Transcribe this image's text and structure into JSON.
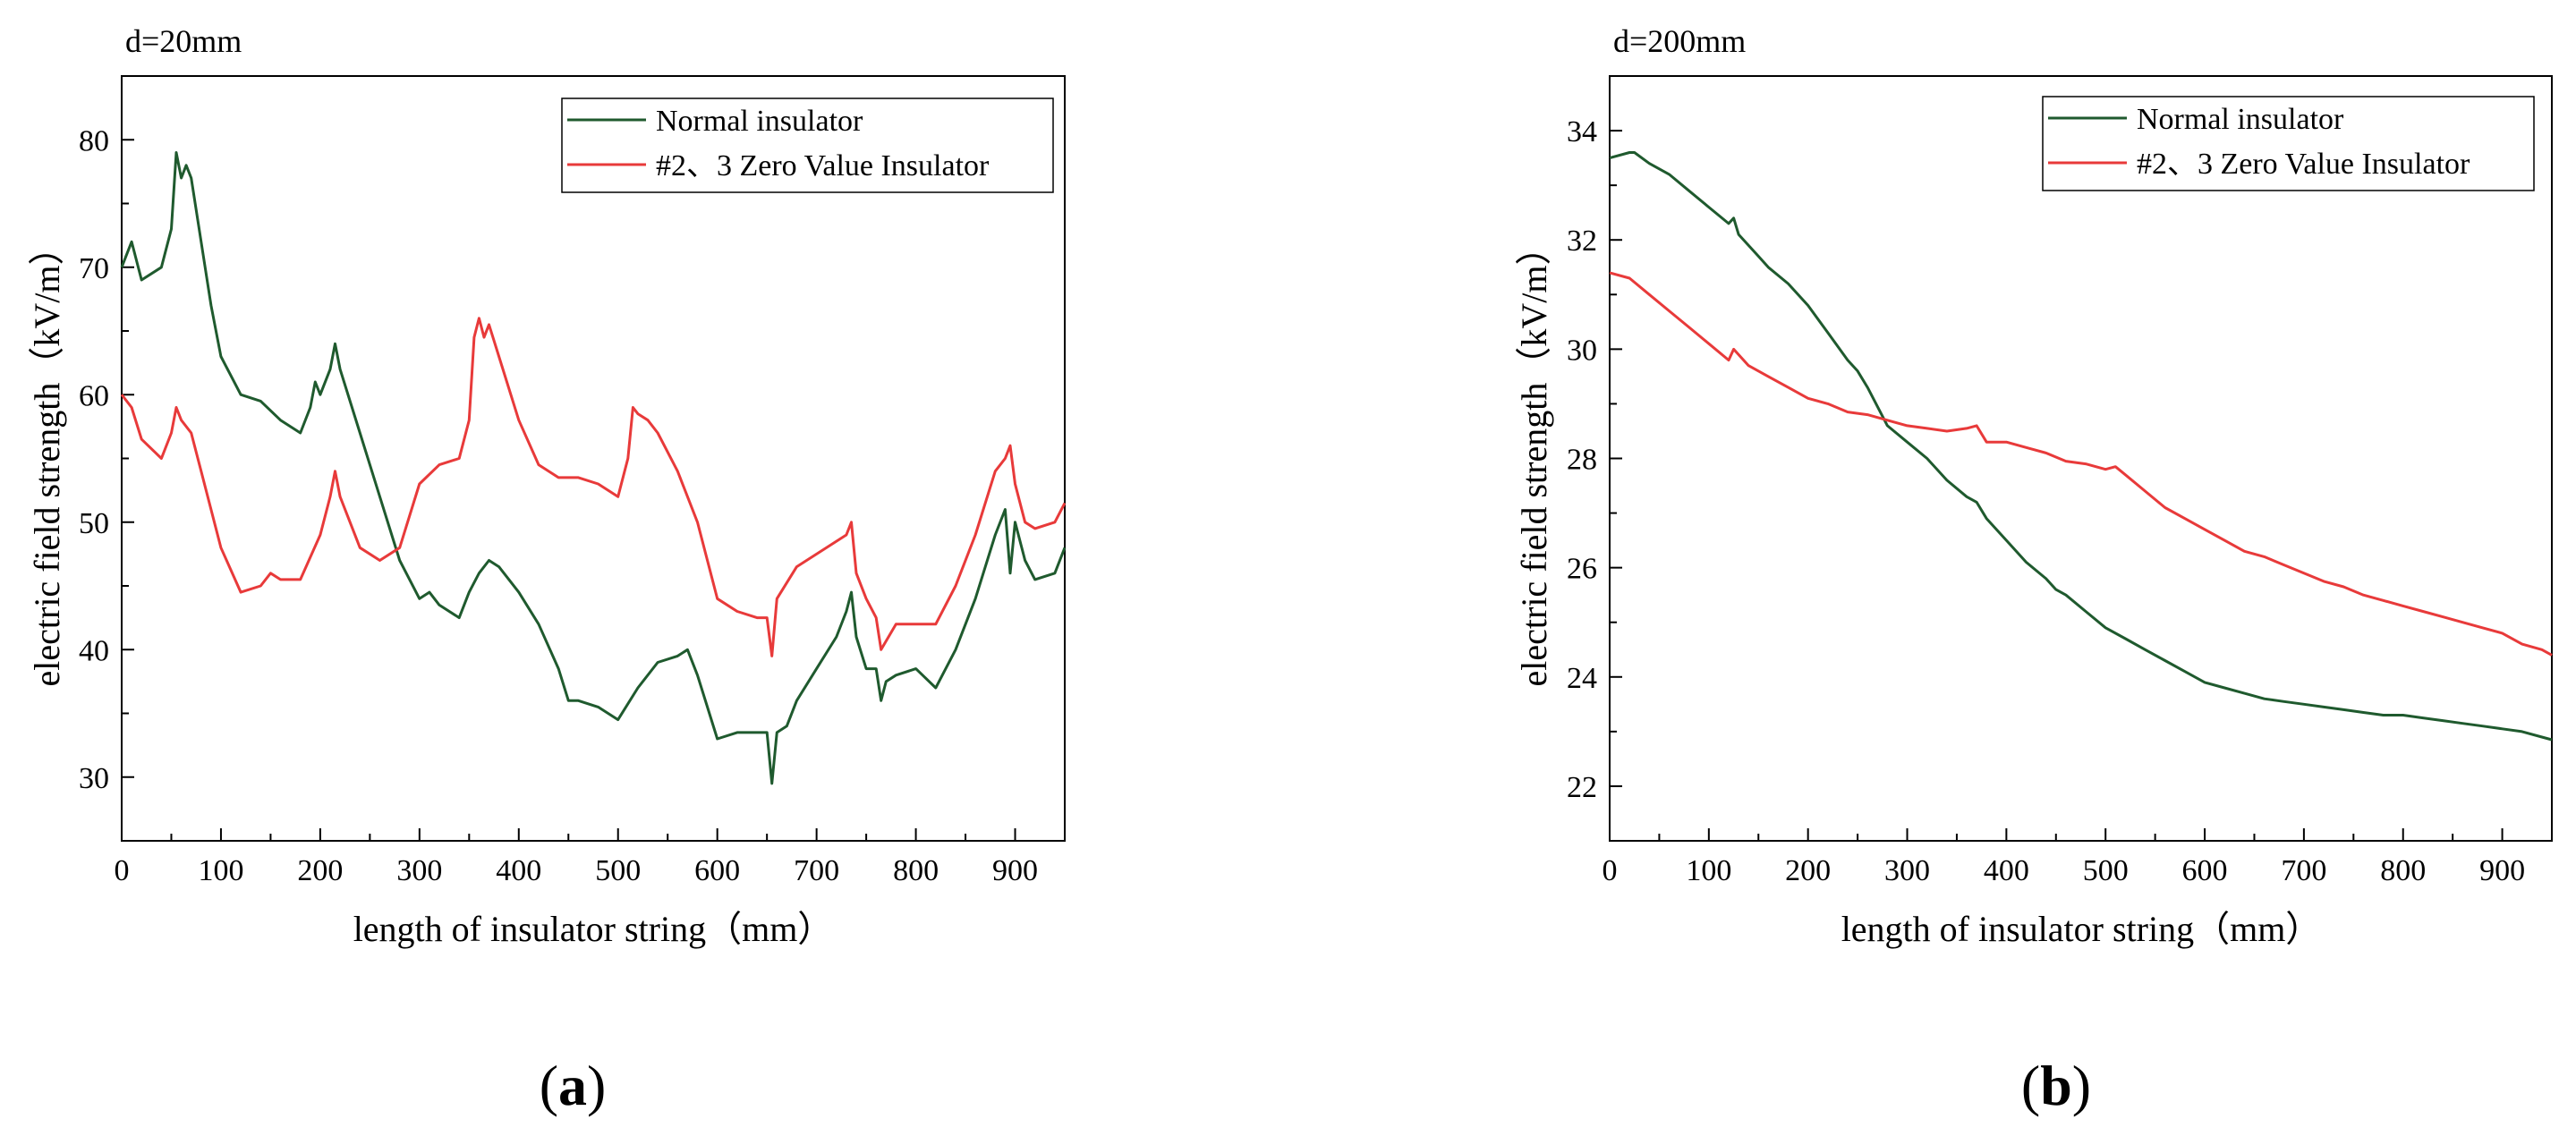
{
  "chart_data": [
    {
      "type": "line",
      "panel_label": "(a)",
      "panel_letter": "a",
      "corner_label": "d=20mm",
      "xlabel": "length of insulator string（mm）",
      "ylabel": "electric field strength（kV/m）",
      "xlim": [
        0,
        950
      ],
      "ylim": [
        25,
        85
      ],
      "xticks": [
        0,
        100,
        200,
        300,
        400,
        500,
        600,
        700,
        800,
        900
      ],
      "yticks": [
        30,
        40,
        50,
        60,
        70,
        80
      ],
      "legend_position": "top-right",
      "series": [
        {
          "name": "Normal insulator",
          "color": "#1f5a2e",
          "x": [
            0,
            10,
            20,
            40,
            50,
            55,
            60,
            65,
            70,
            80,
            90,
            100,
            120,
            140,
            160,
            180,
            190,
            195,
            200,
            210,
            215,
            220,
            240,
            260,
            280,
            300,
            310,
            320,
            340,
            350,
            360,
            370,
            380,
            400,
            420,
            440,
            450,
            460,
            480,
            500,
            520,
            540,
            560,
            570,
            580,
            600,
            620,
            640,
            650,
            655,
            660,
            670,
            680,
            700,
            720,
            730,
            735,
            740,
            750,
            760,
            765,
            770,
            780,
            800,
            820,
            840,
            860,
            880,
            890,
            895,
            900,
            910,
            920,
            940,
            950
          ],
          "values": [
            70,
            72,
            69,
            70,
            73,
            79,
            77,
            78,
            77,
            72,
            67,
            63,
            60,
            59.5,
            58,
            57,
            59,
            61,
            60,
            62,
            64,
            62,
            57,
            52,
            47,
            44,
            44.5,
            43.5,
            42.5,
            44.5,
            46,
            47,
            46.5,
            44.5,
            42,
            38.5,
            36,
            36,
            35.5,
            34.5,
            37,
            39,
            39.5,
            40,
            38,
            33,
            33.5,
            33.5,
            33.5,
            29.5,
            33.5,
            34,
            36,
            38.5,
            41,
            43,
            44.5,
            41,
            38.5,
            38.5,
            36,
            37.5,
            38,
            38.5,
            37,
            40,
            44,
            49,
            51,
            46,
            50,
            47,
            45.5,
            46,
            48
          ]
        },
        {
          "name": "#2、3 Zero Value Insulator",
          "color": "#e83a3a",
          "x": [
            0,
            10,
            20,
            40,
            50,
            55,
            60,
            70,
            80,
            100,
            120,
            140,
            150,
            160,
            180,
            200,
            210,
            215,
            220,
            240,
            260,
            280,
            300,
            320,
            340,
            350,
            355,
            360,
            365,
            370,
            380,
            400,
            420,
            440,
            460,
            480,
            500,
            510,
            515,
            520,
            530,
            540,
            560,
            580,
            590,
            600,
            620,
            640,
            650,
            655,
            660,
            680,
            700,
            720,
            730,
            735,
            740,
            750,
            760,
            765,
            780,
            800,
            820,
            840,
            860,
            880,
            890,
            895,
            900,
            910,
            920,
            940,
            950
          ],
          "values": [
            60,
            59,
            56.5,
            55,
            57,
            59,
            58,
            57,
            54,
            48,
            44.5,
            45,
            46,
            45.5,
            45.5,
            49,
            52,
            54,
            52,
            48,
            47,
            48,
            53,
            54.5,
            55,
            58,
            64.5,
            66,
            64.5,
            65.5,
            63,
            58,
            54.5,
            53.5,
            53.5,
            53,
            52,
            55,
            59,
            58.5,
            58,
            57,
            54,
            50,
            47,
            44,
            43,
            42.5,
            42.5,
            39.5,
            44,
            46.5,
            47.5,
            48.5,
            49,
            50,
            46,
            44,
            42.5,
            40,
            42,
            42,
            42,
            45,
            49,
            54,
            55,
            56,
            53,
            50,
            49.5,
            50,
            51.5
          ]
        }
      ]
    },
    {
      "type": "line",
      "panel_label": "(b)",
      "panel_letter": "b",
      "corner_label": "d=200mm",
      "xlabel": "length of insulator string（mm）",
      "ylabel": "electric field strength（kV/m）",
      "xlim": [
        0,
        950
      ],
      "ylim": [
        21,
        35
      ],
      "xticks": [
        0,
        100,
        200,
        300,
        400,
        500,
        600,
        700,
        800,
        900
      ],
      "yticks": [
        22,
        24,
        26,
        28,
        30,
        32,
        34
      ],
      "legend_position": "top-right",
      "series": [
        {
          "name": "Normal insulator",
          "color": "#1f5a2e",
          "x": [
            0,
            20,
            25,
            40,
            60,
            80,
            100,
            120,
            125,
            130,
            150,
            160,
            180,
            200,
            220,
            240,
            250,
            260,
            280,
            300,
            320,
            340,
            360,
            370,
            380,
            400,
            420,
            440,
            450,
            460,
            480,
            500,
            520,
            540,
            560,
            580,
            600,
            620,
            640,
            660,
            680,
            700,
            720,
            740,
            760,
            780,
            800,
            820,
            840,
            860,
            880,
            900,
            920,
            940,
            950
          ],
          "values": [
            33.5,
            33.6,
            33.6,
            33.4,
            33.2,
            32.9,
            32.6,
            32.3,
            32.4,
            32.1,
            31.7,
            31.5,
            31.2,
            30.8,
            30.3,
            29.8,
            29.6,
            29.3,
            28.6,
            28.3,
            28,
            27.6,
            27.3,
            27.2,
            26.9,
            26.5,
            26.1,
            25.8,
            25.6,
            25.5,
            25.2,
            24.9,
            24.7,
            24.5,
            24.3,
            24.1,
            23.9,
            23.8,
            23.7,
            23.6,
            23.55,
            23.5,
            23.45,
            23.4,
            23.35,
            23.3,
            23.3,
            23.25,
            23.2,
            23.15,
            23.1,
            23.05,
            23,
            22.9,
            22.85
          ]
        },
        {
          "name": "#2、3 Zero Value Insulator",
          "color": "#e83a3a",
          "x": [
            0,
            20,
            40,
            60,
            80,
            100,
            120,
            125,
            140,
            160,
            180,
            200,
            220,
            240,
            260,
            280,
            300,
            320,
            340,
            360,
            370,
            380,
            400,
            420,
            440,
            460,
            480,
            500,
            510,
            520,
            540,
            560,
            580,
            600,
            620,
            640,
            660,
            680,
            700,
            720,
            740,
            760,
            780,
            800,
            820,
            840,
            860,
            880,
            900,
            920,
            940,
            950
          ],
          "values": [
            31.4,
            31.3,
            31,
            30.7,
            30.4,
            30.1,
            29.8,
            30,
            29.7,
            29.5,
            29.3,
            29.1,
            29,
            28.85,
            28.8,
            28.7,
            28.6,
            28.55,
            28.5,
            28.55,
            28.6,
            28.3,
            28.3,
            28.2,
            28.1,
            27.95,
            27.9,
            27.8,
            27.85,
            27.7,
            27.4,
            27.1,
            26.9,
            26.7,
            26.5,
            26.3,
            26.2,
            26.05,
            25.9,
            25.75,
            25.65,
            25.5,
            25.4,
            25.3,
            25.2,
            25.1,
            25,
            24.9,
            24.8,
            24.6,
            24.5,
            24.4
          ]
        }
      ]
    }
  ]
}
